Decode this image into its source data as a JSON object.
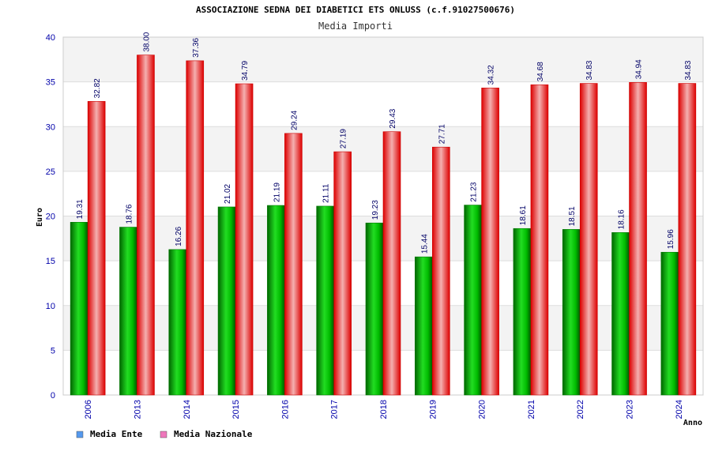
{
  "chart_data": {
    "type": "bar",
    "title": "ASSOCIAZIONE SEDNA DEI DIABETICI ETS ONLUSS (c.f.91027500676)",
    "subtitle": "Media Importi",
    "xlabel": "Anno",
    "ylabel": "Euro",
    "ylim": [
      0,
      40
    ],
    "yticks": [
      0,
      5,
      10,
      15,
      20,
      25,
      30,
      35,
      40
    ],
    "grid": true,
    "legend_position": "bottom-left",
    "categories": [
      "2006",
      "2013",
      "2014",
      "2015",
      "2016",
      "2017",
      "2018",
      "2019",
      "2020",
      "2021",
      "2022",
      "2023",
      "2024"
    ],
    "series": [
      {
        "name": "Media Ente",
        "color": "#00aa00",
        "legend_color": "#5599ee",
        "values": [
          19.31,
          18.76,
          16.26,
          21.02,
          21.19,
          21.11,
          19.23,
          15.44,
          21.23,
          18.61,
          18.51,
          18.16,
          15.96
        ],
        "labels": [
          "19.31",
          "18.76",
          "16.26",
          "21.02",
          "21.19",
          "21.11",
          "19.23",
          "15.44",
          "21.23",
          "18.61",
          "18.51",
          "18.16",
          "15.96"
        ]
      },
      {
        "name": "Media Nazionale",
        "color": "#ee0000",
        "legend_color": "#ee77bb",
        "values": [
          32.82,
          38.0,
          37.36,
          34.79,
          29.24,
          27.19,
          29.43,
          27.71,
          34.32,
          34.68,
          34.83,
          34.94,
          34.83
        ],
        "labels": [
          "32.82",
          "38.00",
          "37.36",
          "34.79",
          "29.24",
          "27.19",
          "29.43",
          "27.71",
          "34.32",
          "34.68",
          "34.83",
          "34.94",
          "34.83"
        ]
      }
    ]
  }
}
